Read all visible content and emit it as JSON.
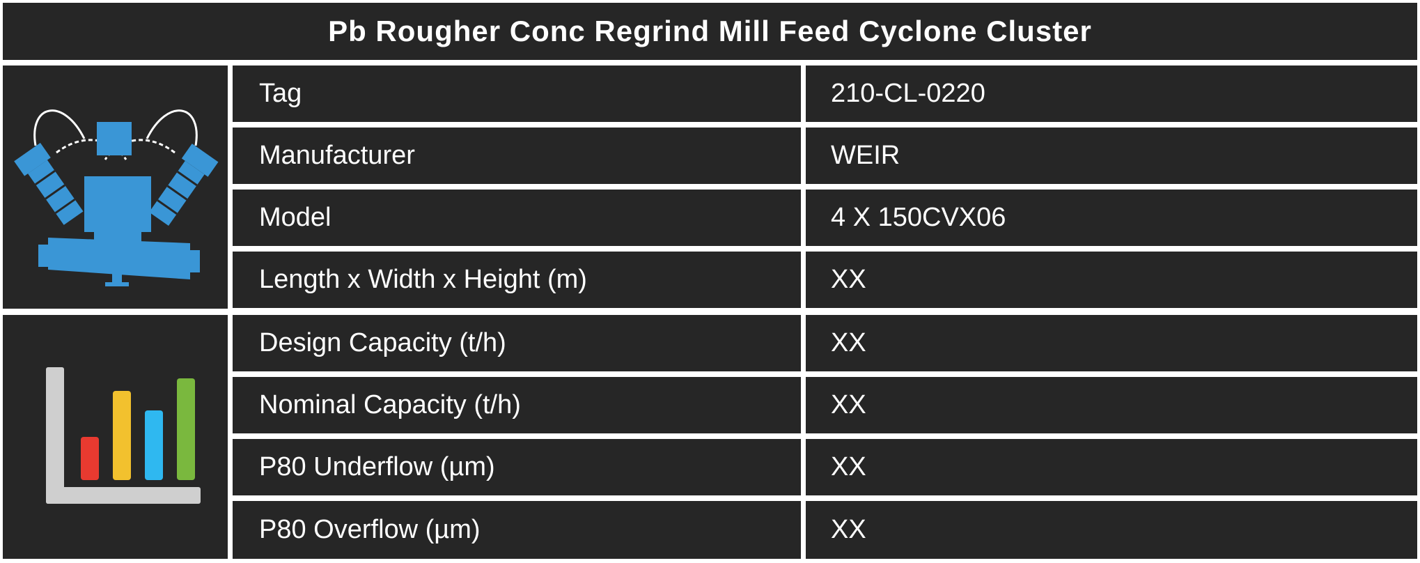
{
  "title": "Pb Rougher Conc Regrind Mill Feed Cyclone Cluster",
  "icons": {
    "equipment": "cyclone-cluster-icon",
    "performance": "bar-chart-icon"
  },
  "colors": {
    "panel_bg": "#262626",
    "grid_line": "#ffffff",
    "cyclone_blue": "#3a96d6",
    "bar_red": "#e83a30",
    "bar_yellow": "#f2c12e",
    "bar_blue": "#2fb8f0",
    "bar_green": "#7ab83e",
    "axis_gray": "#cfcfcf"
  },
  "rows": [
    {
      "label": "Tag",
      "value": "210-CL-0220"
    },
    {
      "label": "Manufacturer",
      "value": "WEIR"
    },
    {
      "label": "Model",
      "value": "4 X 150CVX06"
    },
    {
      "label": "Length x Width x Height (m)",
      "value": "XX"
    },
    {
      "label": "Design Capacity (t/h)",
      "value": "XX"
    },
    {
      "label": "Nominal Capacity (t/h)",
      "value": "XX"
    },
    {
      "label": "P80 Underflow (µm)",
      "value": "XX"
    },
    {
      "label": "P80 Overflow (µm)",
      "value": "XX"
    }
  ]
}
